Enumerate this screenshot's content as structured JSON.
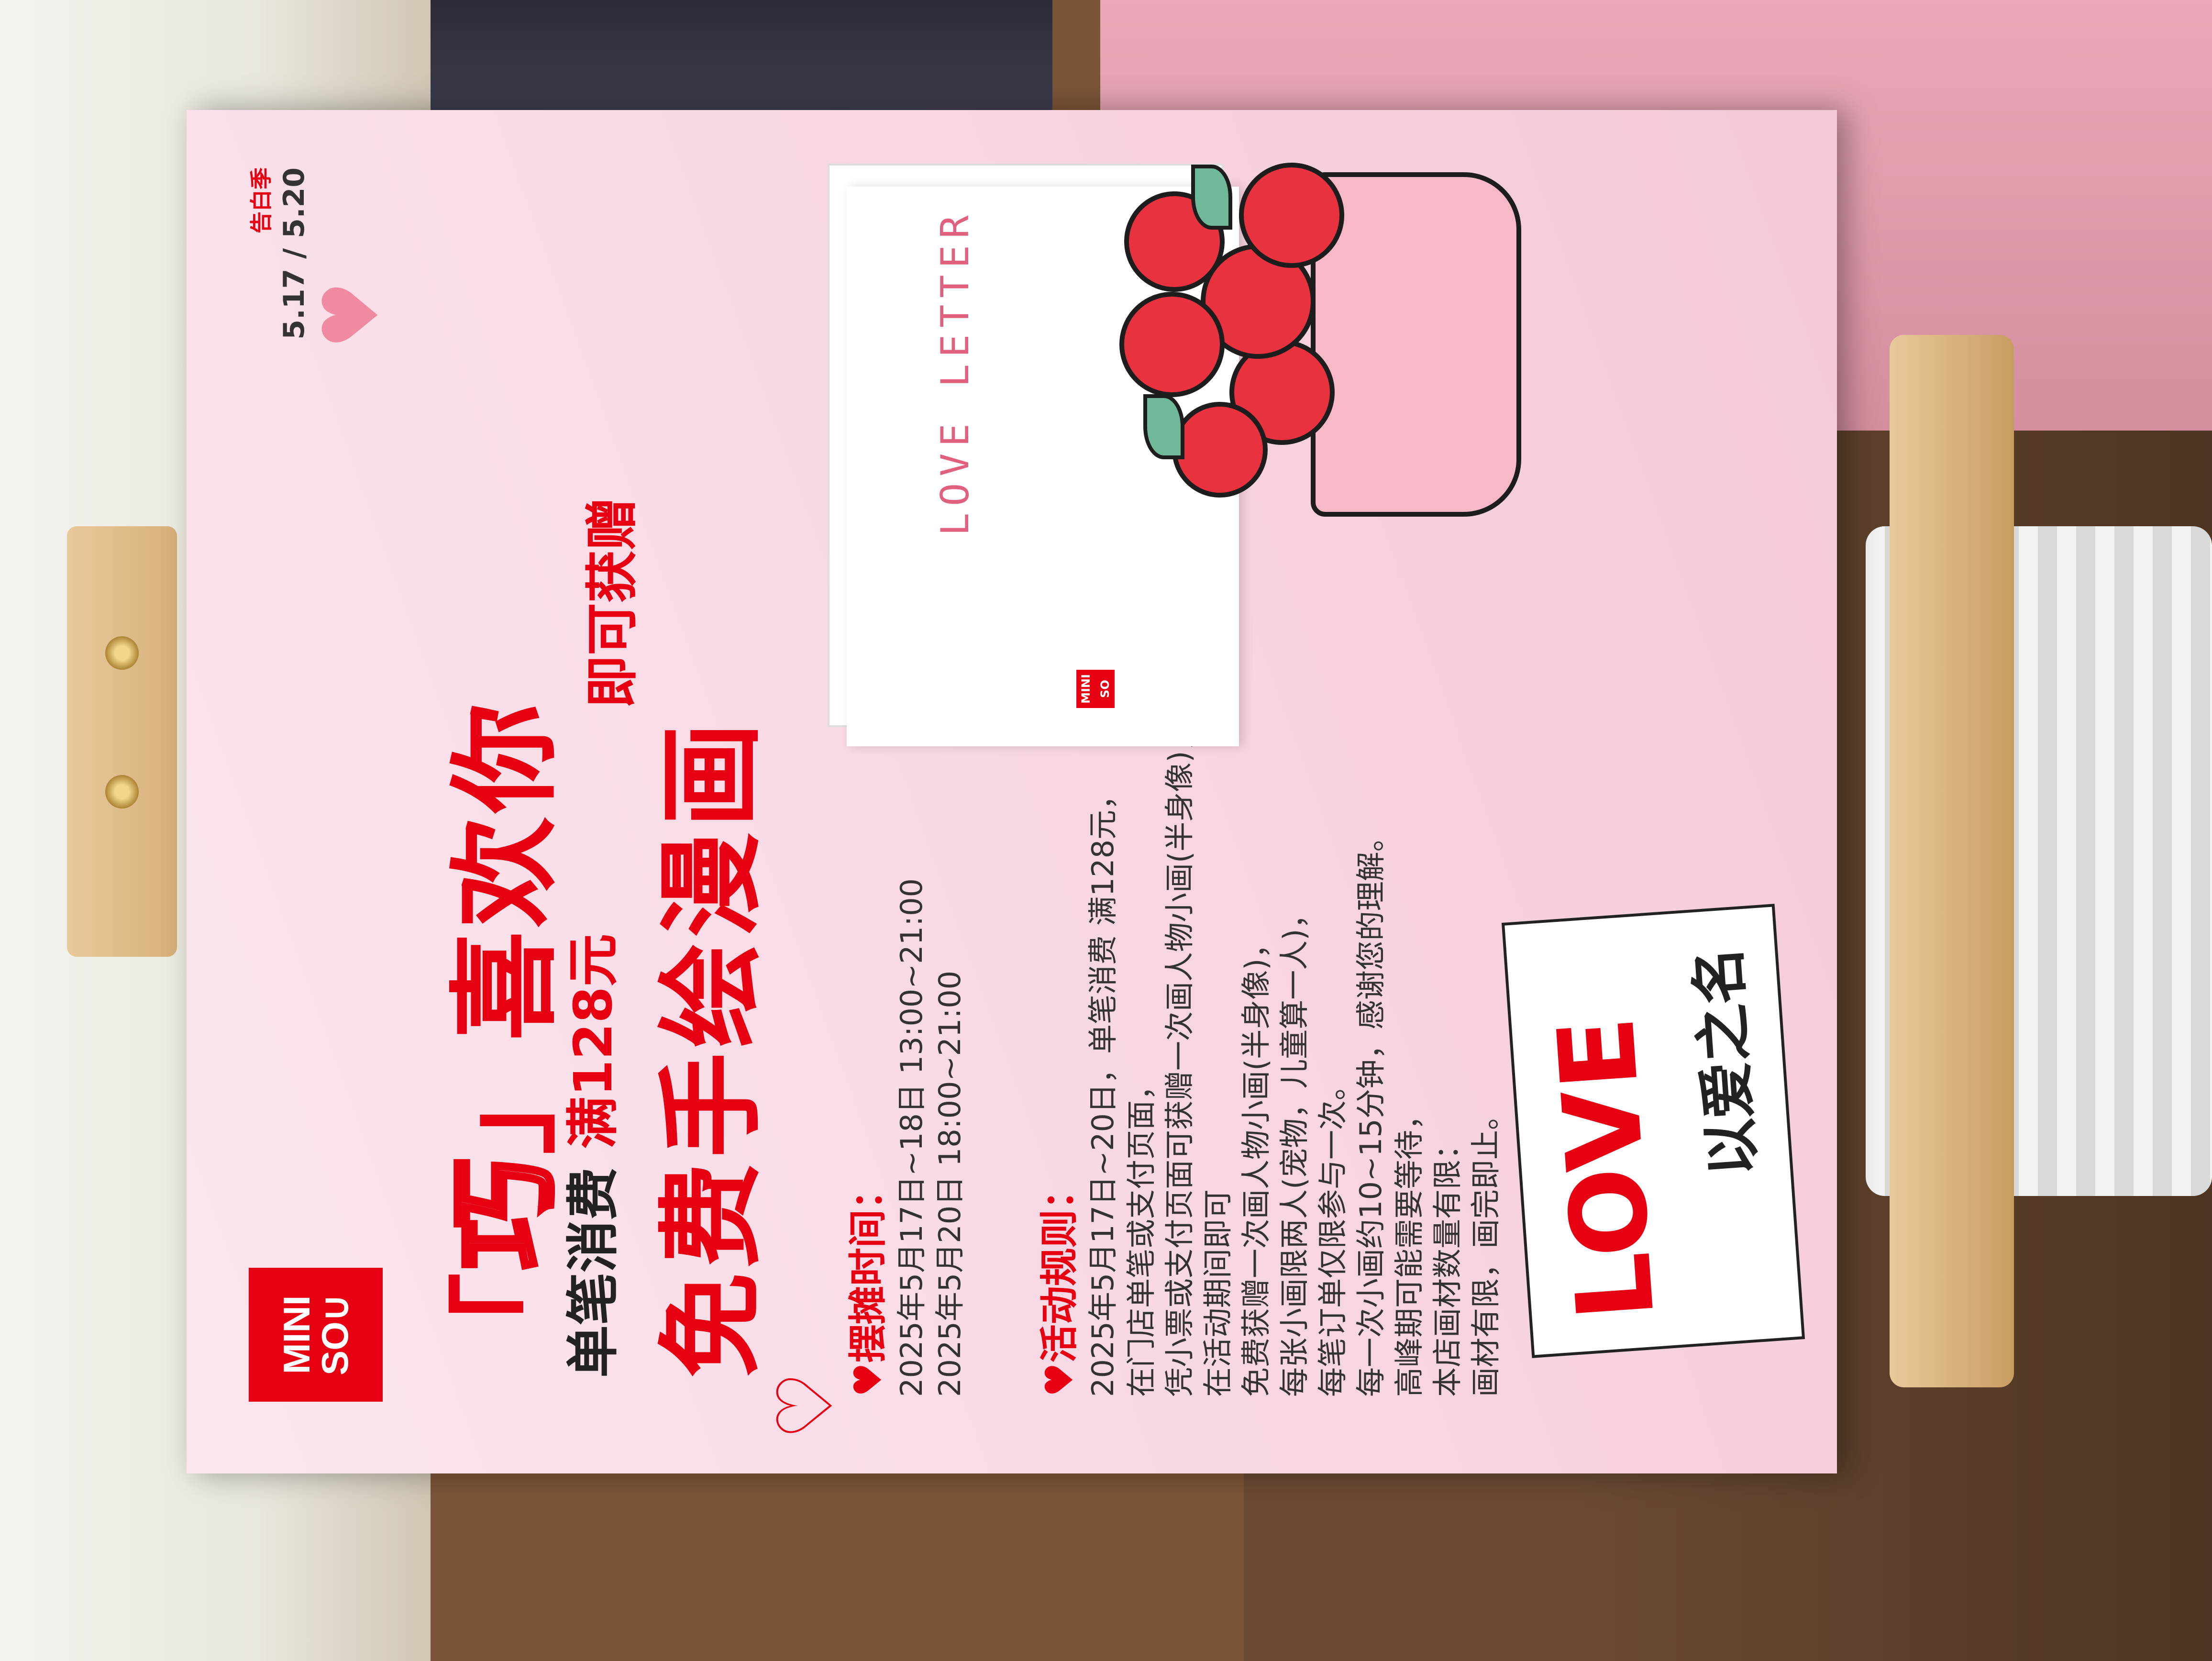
{
  "poster": {
    "brand": {
      "line1": "MINI",
      "line2": "SO∪"
    },
    "season_label": "告白季",
    "dates": "5.17 / 5.20",
    "headline": {
      "open_quote": "「",
      "qiao": "巧",
      "close_quote": "」",
      "rest": "喜欢你"
    },
    "offer_line": {
      "prefix": "单笔消费",
      "amount": "满128元",
      "suffix": "即可获赠"
    },
    "offer_big": "免费手绘漫画",
    "time_section": {
      "title": "摆摊时间：",
      "lines": [
        "2025年5月17日~18日 13:00~21:00",
        "2025年5月20日 18:00~21:00"
      ]
    },
    "rules_section": {
      "title": "活动规则：",
      "lines": [
        "2025年5月17日~20日，单笔消费 满128元，",
        "在门店单笔或支付页面，",
        "凭小票或支付页面可获赠一次画人物小画(半身像)，",
        "在活动期间即可",
        "免费获赠一次画人物小画(半身像)，",
        "每张小画限两人(宠物，儿童算一人)，",
        "每笔订单仅限参与一次。",
        "每一次小画约10~15分钟，感谢您的理解。",
        "高峰期可能需要等待，",
        "本店画材数量有限：",
        "画材有限，画完即止。"
      ]
    },
    "card": {
      "text": "LOVE LETTER",
      "mini_logo": "MINI SO"
    },
    "love_card": {
      "title": "LOVE",
      "subtitle": "以爱之名"
    }
  }
}
